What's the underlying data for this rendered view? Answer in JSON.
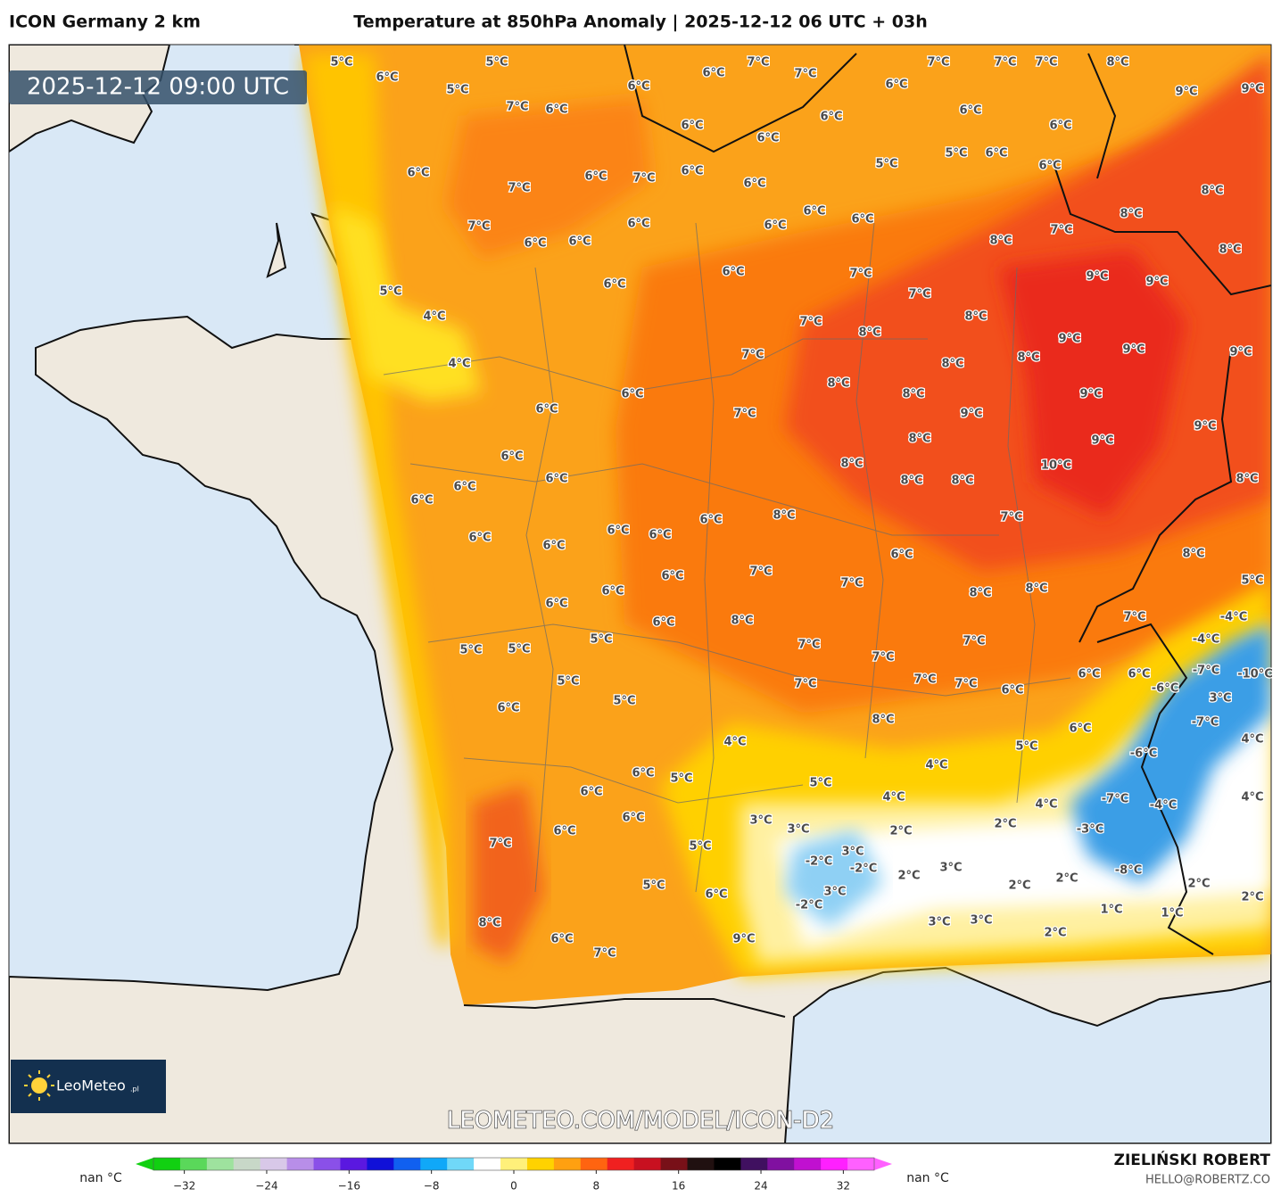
{
  "header": {
    "model": "ICON Germany 2 km",
    "title": "Temperature at 850hPa Anomaly | 2025-12-12 06 UTC + 03h"
  },
  "timestamp": "2025-12-12 09:00 UTC",
  "logo": {
    "name": "LeoMeteo",
    "suffix": ".pl"
  },
  "watermark": "LEOMETEO.COM/MODEL/ICON-D2",
  "author": {
    "name": "ZIELIŃSKI ROBERT",
    "email": "HELLO@ROBERTZ.CO"
  },
  "colorbar": {
    "lim": [
      -35,
      35
    ],
    "ticks": [
      {
        "value": -32,
        "label": "−32"
      },
      {
        "value": -24,
        "label": "−24"
      },
      {
        "value": -16,
        "label": "−16"
      },
      {
        "value": -8,
        "label": "−8"
      },
      0,
      8,
      16,
      24,
      32
    ],
    "nan_left": "nan °C",
    "nan_right": "nan °C",
    "colors": [
      "#11d011",
      "#5ad85a",
      "#9ee29e",
      "#c8d8c8",
      "#d8c8e8",
      "#b88ee8",
      "#8a50e8",
      "#5a18e0",
      "#1010d8",
      "#1060f0",
      "#10a8f8",
      "#70d8f8",
      "#ffffff",
      "#fff07a",
      "#ffd200",
      "#ffa010",
      "#ff6410",
      "#f02020",
      "#c81020",
      "#781018",
      "#201010",
      "#000000",
      "#401060",
      "#8010a0",
      "#c010d0",
      "#ff20ff",
      "#ff60ff"
    ]
  },
  "map_labels": [
    "5°C",
    "6°C",
    "5°C",
    "5°C",
    "7°C",
    "6°C",
    "6°C",
    "6°C",
    "7°C",
    "7°C",
    "6°C",
    "7°C",
    "6°C",
    "7°C",
    "7°C",
    "8°C",
    "9°C",
    "9°C",
    "6°C",
    "7°C",
    "6°C",
    "7°C",
    "6°C",
    "6°C",
    "6°C",
    "6°C",
    "5°C",
    "5°C",
    "6°C",
    "6°C",
    "6°C",
    "6°C",
    "8°C",
    "7°C",
    "6°C",
    "6°C",
    "6°C",
    "6°C",
    "6°C",
    "6°C",
    "8°C",
    "7°C",
    "8°C",
    "8°C",
    "5°C",
    "4°C",
    "4°C",
    "6°C",
    "6°C",
    "7°C",
    "7°C",
    "9°C",
    "9°C",
    "7°C",
    "8°C",
    "8°C",
    "9°C",
    "9°C",
    "9°C",
    "7°C",
    "8°C",
    "8°C",
    "6°C",
    "8°C",
    "8°C",
    "9°C",
    "6°C",
    "7°C",
    "9°C",
    "9°C",
    "6°C",
    "8°C",
    "9°C",
    "8°C",
    "10°C",
    "6°C",
    "6°C",
    "6°C",
    "8°C",
    "8°C",
    "8°C",
    "6°C",
    "6°C",
    "6°C",
    "6°C",
    "6°C",
    "8°C",
    "7°C",
    "6°C",
    "6°C",
    "8°C",
    "7°C",
    "7°C",
    "5°C",
    "6°C",
    "6°C",
    "8°C",
    "8°C",
    "7°C",
    "-4°C",
    "6°C",
    "8°C",
    "-4°C",
    "5°C",
    "5°C",
    "5°C",
    "7°C",
    "7°C",
    "7°C",
    "6°C",
    "6°C",
    "-7°C",
    "-10°C",
    "5°C",
    "5°C",
    "6°C",
    "7°C",
    "7°C",
    "7°C",
    "6°C",
    "-6°C",
    "3°C",
    "-7°C",
    "8°C",
    "6°C",
    "4°C",
    "5°C",
    "4°C",
    "-6°C",
    "6°C",
    "5°C",
    "4°C",
    "5°C",
    "6°C",
    "4°C",
    "4°C",
    "-7°C",
    "4°C",
    "-4°C",
    "6°C",
    "3°C",
    "3°C",
    "2°C",
    "2°C",
    "-3°C",
    "6°C",
    "7°C",
    "5°C",
    "3°C",
    "-2°C",
    "-2°C",
    "3°C",
    "-8°C",
    "5°C",
    "6°C",
    "2°C",
    "2°C",
    "2°C",
    "2°C",
    "3°C",
    "-2°C",
    "2°C",
    "1°C",
    "1°C",
    "8°C",
    "3°C",
    "3°C",
    "2°C",
    "6°C",
    "9°C",
    "7°C"
  ]
}
